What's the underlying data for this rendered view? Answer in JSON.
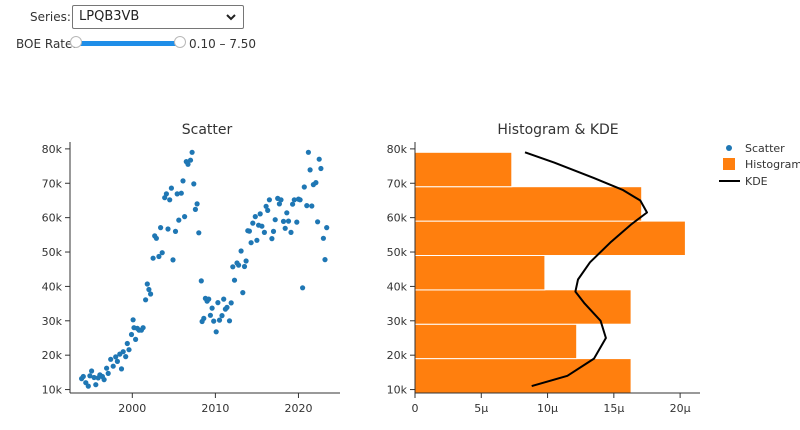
{
  "controls": {
    "series_label": "Series:",
    "series_value": "LPQB3VB",
    "rate_label": "BOE Rate:",
    "rate_range_text": "0.10 – 7.50",
    "rate_min": 0.1,
    "rate_max": 7.5
  },
  "legend": {
    "items": [
      "Scatter",
      "Histogram",
      "KDE"
    ]
  },
  "colors": {
    "scatter": "#1f77b4",
    "histogram": "#ff7f0e",
    "kde": "#000000",
    "slider": "#1f8ee8"
  },
  "chart_data": [
    {
      "type": "scatter",
      "title": "Scatter",
      "xlim": [
        1992.5,
        2025
      ],
      "ylim": [
        9000,
        82000
      ],
      "x_ticks": [
        2000,
        2010,
        2020
      ],
      "x_tick_labels": [
        "2000",
        "2010",
        "2020"
      ],
      "y_ticks": [
        10000,
        20000,
        30000,
        40000,
        50000,
        60000,
        70000,
        80000
      ],
      "y_tick_labels": [
        "10k",
        "20k",
        "30k",
        "40k",
        "50k",
        "60k",
        "70k",
        "80k"
      ],
      "points": [
        [
          1993.9,
          13200
        ],
        [
          1994.1,
          13800
        ],
        [
          1994.4,
          12000
        ],
        [
          1994.7,
          11000
        ],
        [
          1994.9,
          14000
        ],
        [
          1995.1,
          15400
        ],
        [
          1995.4,
          13500
        ],
        [
          1995.6,
          11400
        ],
        [
          1995.9,
          13400
        ],
        [
          1996.1,
          14300
        ],
        [
          1996.4,
          13800
        ],
        [
          1996.6,
          12900
        ],
        [
          1996.9,
          16200
        ],
        [
          1997.1,
          14700
        ],
        [
          1997.4,
          18800
        ],
        [
          1997.7,
          16800
        ],
        [
          1998.0,
          19500
        ],
        [
          1998.2,
          18200
        ],
        [
          1998.5,
          20300
        ],
        [
          1998.7,
          16000
        ],
        [
          1998.9,
          21000
        ],
        [
          1999.2,
          19600
        ],
        [
          1999.4,
          23400
        ],
        [
          1999.6,
          21600
        ],
        [
          1999.9,
          26000
        ],
        [
          2000.1,
          30300
        ],
        [
          2000.2,
          28000
        ],
        [
          2000.4,
          24600
        ],
        [
          2000.6,
          27800
        ],
        [
          2000.8,
          27300
        ],
        [
          2001.1,
          27300
        ],
        [
          2001.3,
          28000
        ],
        [
          2001.6,
          36100
        ],
        [
          2001.8,
          40700
        ],
        [
          2002.0,
          39100
        ],
        [
          2002.2,
          37800
        ],
        [
          2002.5,
          48200
        ],
        [
          2002.7,
          54700
        ],
        [
          2002.9,
          54000
        ],
        [
          2003.2,
          48700
        ],
        [
          2003.4,
          57100
        ],
        [
          2003.6,
          49800
        ],
        [
          2003.9,
          65800
        ],
        [
          2004.1,
          66900
        ],
        [
          2004.3,
          56700
        ],
        [
          2004.5,
          65200
        ],
        [
          2004.7,
          68600
        ],
        [
          2004.9,
          47700
        ],
        [
          2005.2,
          56000
        ],
        [
          2005.4,
          66900
        ],
        [
          2005.6,
          59300
        ],
        [
          2005.9,
          67100
        ],
        [
          2006.1,
          70700
        ],
        [
          2006.3,
          60300
        ],
        [
          2006.5,
          76300
        ],
        [
          2006.7,
          75500
        ],
        [
          2007.0,
          76700
        ],
        [
          2007.2,
          79000
        ],
        [
          2007.4,
          69800
        ],
        [
          2007.6,
          62400
        ],
        [
          2007.8,
          64000
        ],
        [
          2008.0,
          55600
        ],
        [
          2008.3,
          41600
        ],
        [
          2008.4,
          29800
        ],
        [
          2008.6,
          30700
        ],
        [
          2008.8,
          36500
        ],
        [
          2009.0,
          35700
        ],
        [
          2009.2,
          36300
        ],
        [
          2009.4,
          31600
        ],
        [
          2009.6,
          33700
        ],
        [
          2009.8,
          29900
        ],
        [
          2010.1,
          26800
        ],
        [
          2010.3,
          35300
        ],
        [
          2010.5,
          30200
        ],
        [
          2010.8,
          31500
        ],
        [
          2011.0,
          36300
        ],
        [
          2011.2,
          33400
        ],
        [
          2011.4,
          33900
        ],
        [
          2011.7,
          30000
        ],
        [
          2011.9,
          35200
        ],
        [
          2012.1,
          45700
        ],
        [
          2012.3,
          41800
        ],
        [
          2012.6,
          46800
        ],
        [
          2012.8,
          46200
        ],
        [
          2013.1,
          50300
        ],
        [
          2013.3,
          38200
        ],
        [
          2013.5,
          45800
        ],
        [
          2013.7,
          47400
        ],
        [
          2013.9,
          56200
        ],
        [
          2014.1,
          56100
        ],
        [
          2014.3,
          52700
        ],
        [
          2014.5,
          58400
        ],
        [
          2014.8,
          60300
        ],
        [
          2015.0,
          53400
        ],
        [
          2015.2,
          57800
        ],
        [
          2015.4,
          61100
        ],
        [
          2015.6,
          57500
        ],
        [
          2015.9,
          55700
        ],
        [
          2016.1,
          63300
        ],
        [
          2016.3,
          62100
        ],
        [
          2016.5,
          65200
        ],
        [
          2016.8,
          53900
        ],
        [
          2017.0,
          56000
        ],
        [
          2017.2,
          59400
        ],
        [
          2017.5,
          65600
        ],
        [
          2017.7,
          64000
        ],
        [
          2017.9,
          65200
        ],
        [
          2018.2,
          58900
        ],
        [
          2018.4,
          56900
        ],
        [
          2018.6,
          61400
        ],
        [
          2018.8,
          59000
        ],
        [
          2019.1,
          55700
        ],
        [
          2019.3,
          63900
        ],
        [
          2019.5,
          65200
        ],
        [
          2019.8,
          58700
        ],
        [
          2020.0,
          65400
        ],
        [
          2020.2,
          65200
        ],
        [
          2020.5,
          39600
        ],
        [
          2020.7,
          68900
        ],
        [
          2021.0,
          63500
        ],
        [
          2021.2,
          79000
        ],
        [
          2021.4,
          73900
        ],
        [
          2021.6,
          63400
        ],
        [
          2021.8,
          69600
        ],
        [
          2022.1,
          70200
        ],
        [
          2022.3,
          58800
        ],
        [
          2022.5,
          77000
        ],
        [
          2022.7,
          74300
        ],
        [
          2023.0,
          54000
        ],
        [
          2023.2,
          47800
        ],
        [
          2023.4,
          57100
        ]
      ]
    },
    {
      "type": "histogram",
      "title": "Histogram & KDE",
      "xlim": [
        0,
        2.15e-05
      ],
      "ylim": [
        9000,
        82000
      ],
      "x_ticks": [
        0,
        5e-06,
        1e-05,
        1.5e-05,
        2e-05
      ],
      "x_tick_labels": [
        "0",
        "5μ",
        "10μ",
        "15μ",
        "20μ"
      ],
      "y_ticks": [
        10000,
        20000,
        30000,
        40000,
        50000,
        60000,
        70000,
        80000
      ],
      "y_tick_labels": [
        "10k",
        "20k",
        "30k",
        "40k",
        "50k",
        "60k",
        "70k",
        "80k"
      ],
      "bins": [
        {
          "y0": 9000,
          "y1": 19000,
          "density": 1.63e-05
        },
        {
          "y0": 19000,
          "y1": 29000,
          "density": 1.22e-05
        },
        {
          "y0": 29000,
          "y1": 39000,
          "density": 1.63e-05
        },
        {
          "y0": 39000,
          "y1": 49000,
          "density": 9.8e-06
        },
        {
          "y0": 49000,
          "y1": 59000,
          "density": 2.04e-05
        },
        {
          "y0": 59000,
          "y1": 69000,
          "density": 1.71e-05
        },
        {
          "y0": 69000,
          "y1": 79000,
          "density": 7.3e-06
        }
      ],
      "kde": [
        [
          8.8e-06,
          11000
        ],
        [
          1.15e-05,
          14000
        ],
        [
          1.35e-05,
          19000
        ],
        [
          1.44e-05,
          25000
        ],
        [
          1.4e-05,
          30000
        ],
        [
          1.28e-05,
          35000
        ],
        [
          1.21e-05,
          38500
        ],
        [
          1.23e-05,
          42000
        ],
        [
          1.32e-05,
          47000
        ],
        [
          1.48e-05,
          53000
        ],
        [
          1.63e-05,
          58000
        ],
        [
          1.75e-05,
          61500
        ],
        [
          1.7e-05,
          65000
        ],
        [
          1.57e-05,
          68000
        ],
        [
          1.35e-05,
          71500
        ],
        [
          1.05e-05,
          76000
        ],
        [
          8.3e-06,
          79000
        ]
      ]
    }
  ]
}
